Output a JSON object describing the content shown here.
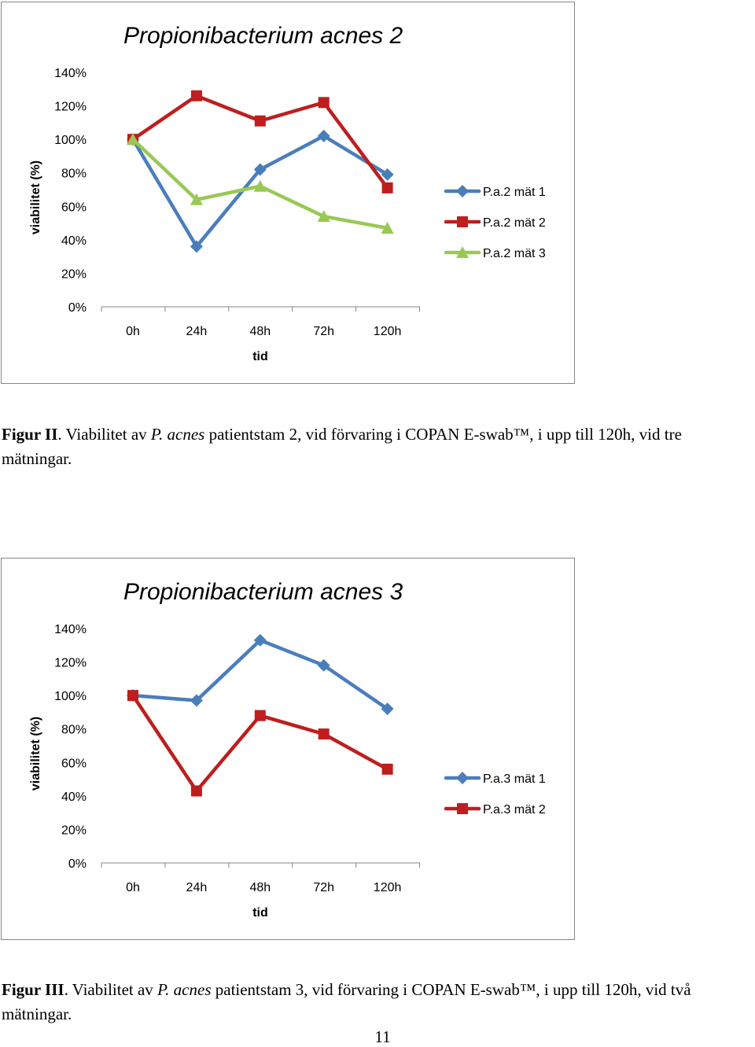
{
  "chart_data": [
    {
      "type": "line",
      "title": "Propionibacterium acnes 2",
      "xlabel": "tid",
      "ylabel": "viabilitet (%)",
      "categories": [
        "0h",
        "24h",
        "48h",
        "72h",
        "120h"
      ],
      "ylim": [
        0,
        140
      ],
      "yticks": [
        "0%",
        "20%",
        "40%",
        "60%",
        "80%",
        "100%",
        "120%",
        "140%"
      ],
      "grid": false,
      "legend": "right",
      "series": [
        {
          "name": "P.a.2 mät 1",
          "values": [
            100,
            36,
            82,
            102,
            79
          ],
          "color": "#4a7ebb",
          "marker": "diamond"
        },
        {
          "name": "P.a.2 mät 2",
          "values": [
            100,
            126,
            111,
            122,
            71
          ],
          "color": "#be1e1e",
          "marker": "square"
        },
        {
          "name": "P.a.2 mät 3",
          "values": [
            100,
            64,
            72,
            54,
            47
          ],
          "color": "#98c954",
          "marker": "triangle"
        }
      ]
    },
    {
      "type": "line",
      "title": "Propionibacterium acnes 3",
      "xlabel": "tid",
      "ylabel": "viabilitet (%)",
      "categories": [
        "0h",
        "24h",
        "48h",
        "72h",
        "120h"
      ],
      "ylim": [
        0,
        140
      ],
      "yticks": [
        "0%",
        "20%",
        "40%",
        "60%",
        "80%",
        "100%",
        "120%",
        "140%"
      ],
      "grid": false,
      "legend": "right",
      "series": [
        {
          "name": "P.a.3 mät 1",
          "values": [
            100,
            97,
            133,
            118,
            92
          ],
          "color": "#4a7ebb",
          "marker": "diamond"
        },
        {
          "name": "P.a.3 mät 2",
          "values": [
            100,
            43,
            88,
            77,
            56
          ],
          "color": "#be1e1e",
          "marker": "square"
        }
      ]
    }
  ],
  "captions": [
    {
      "label": "Figur II",
      "pre": ". Viabilitet av ",
      "italic": "P. acnes",
      "post": " patientstam 2, vid förvaring i COPAN E-swab™, i upp till 120h, vid tre mätningar."
    },
    {
      "label": "Figur III",
      "pre": ". Viabilitet av ",
      "italic": "P. acnes",
      "post": " patientstam 3, vid förvaring i COPAN E-swab™, i upp till 120h, vid två mätningar."
    }
  ],
  "page_number": "11"
}
